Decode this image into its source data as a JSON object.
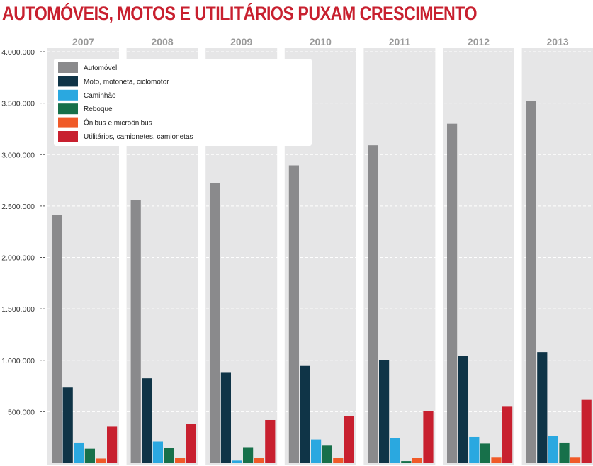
{
  "chart_data": {
    "type": "bar",
    "title": "AUTOMÓVEIS, MOTOS  E UTILITÁRIOS PUXAM CRESCIMENTO",
    "categories": [
      "2007",
      "2008",
      "2009",
      "2010",
      "2011",
      "2012",
      "2013"
    ],
    "ylim": [
      0,
      4000000
    ],
    "yticks": [
      {
        "value": 500000,
        "label": "500.000"
      },
      {
        "value": 1000000,
        "label": "1.000.000"
      },
      {
        "value": 1500000,
        "label": "1.500.000"
      },
      {
        "value": 2000000,
        "label": "2.000.000"
      },
      {
        "value": 2500000,
        "label": "2.500.000"
      },
      {
        "value": 3000000,
        "label": "3.000.000"
      },
      {
        "value": 3500000,
        "label": "3.500.000"
      },
      {
        "value": 4000000,
        "label": "4.000.000"
      }
    ],
    "grid": true,
    "legend_position": "top-left",
    "series": [
      {
        "name": "Automóvel",
        "color": "#8a8a8c",
        "values": [
          2410000,
          2560000,
          2720000,
          2895000,
          3090000,
          3300000,
          3520000
        ]
      },
      {
        "name": "Moto, motoneta, ciclomotor",
        "color": "#0f3447",
        "values": [
          735000,
          825000,
          885000,
          945000,
          1000000,
          1045000,
          1080000
        ]
      },
      {
        "name": "Caminhão",
        "color": "#2aa8e0",
        "values": [
          200000,
          210000,
          25000,
          230000,
          245000,
          255000,
          265000
        ]
      },
      {
        "name": "Reboque",
        "color": "#17704a",
        "values": [
          140000,
          150000,
          155000,
          170000,
          20000,
          190000,
          200000
        ]
      },
      {
        "name": "Ônibus e microônibus",
        "color": "#f05a28",
        "values": [
          45000,
          50000,
          50000,
          55000,
          55000,
          60000,
          60000
        ]
      },
      {
        "name": "Utilitários, camionetes, camionetas",
        "color": "#c8202f",
        "values": [
          355000,
          380000,
          420000,
          460000,
          505000,
          555000,
          615000
        ]
      }
    ]
  }
}
